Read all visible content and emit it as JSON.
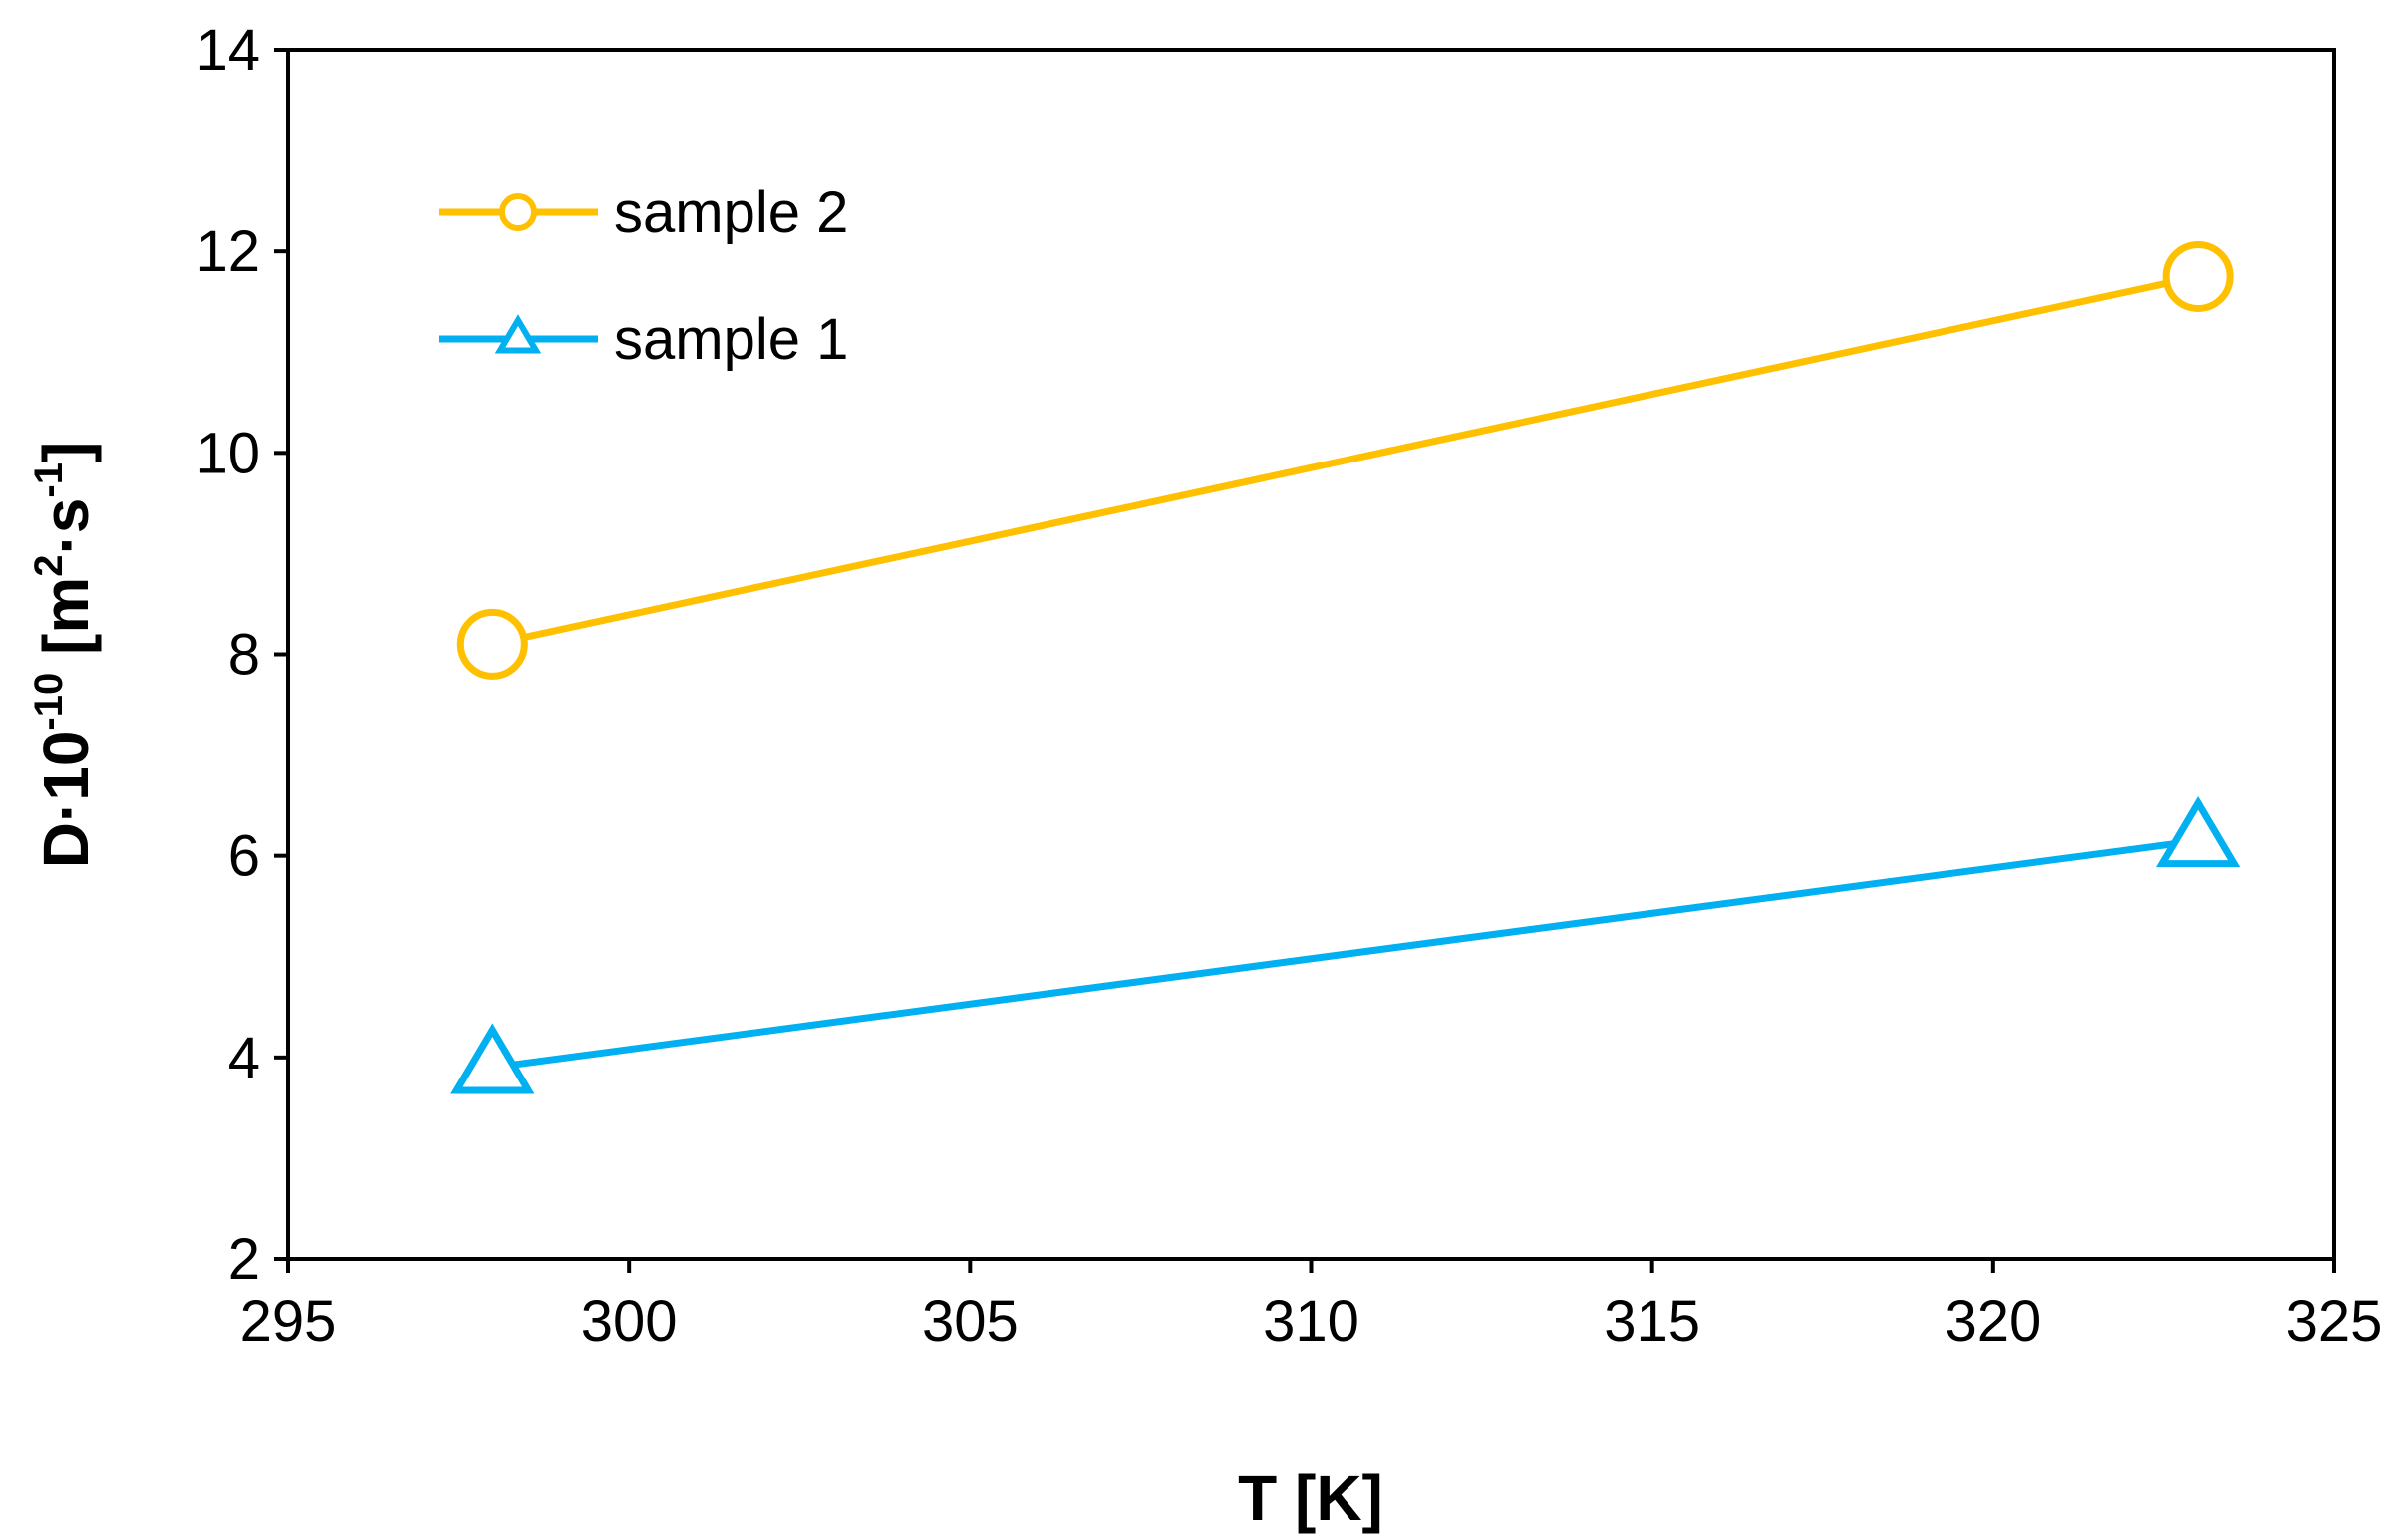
{
  "chart_data": {
    "type": "line",
    "title": "",
    "xlabel": "T [K]",
    "ylabel": {
      "base": "D·10",
      "exp1": "-10",
      "mid": " [m",
      "exp2": "2",
      "mid2": "·s",
      "exp3": "-1",
      "end": "]"
    },
    "xlim": [
      295,
      325
    ],
    "ylim": [
      2,
      14
    ],
    "xticks": [
      295,
      300,
      305,
      310,
      315,
      320,
      325
    ],
    "yticks": [
      2,
      4,
      6,
      8,
      10,
      12,
      14
    ],
    "grid": false,
    "legend_position": "top-left",
    "series": [
      {
        "name": "sample 2",
        "color": "#FFC000",
        "marker": "circle",
        "x": [
          298,
          323
        ],
        "y": [
          8.1,
          11.75
        ]
      },
      {
        "name": "sample 1",
        "color": "#00B0F0",
        "marker": "triangle",
        "x": [
          298,
          323
        ],
        "y": [
          3.9,
          6.15
        ]
      }
    ]
  }
}
